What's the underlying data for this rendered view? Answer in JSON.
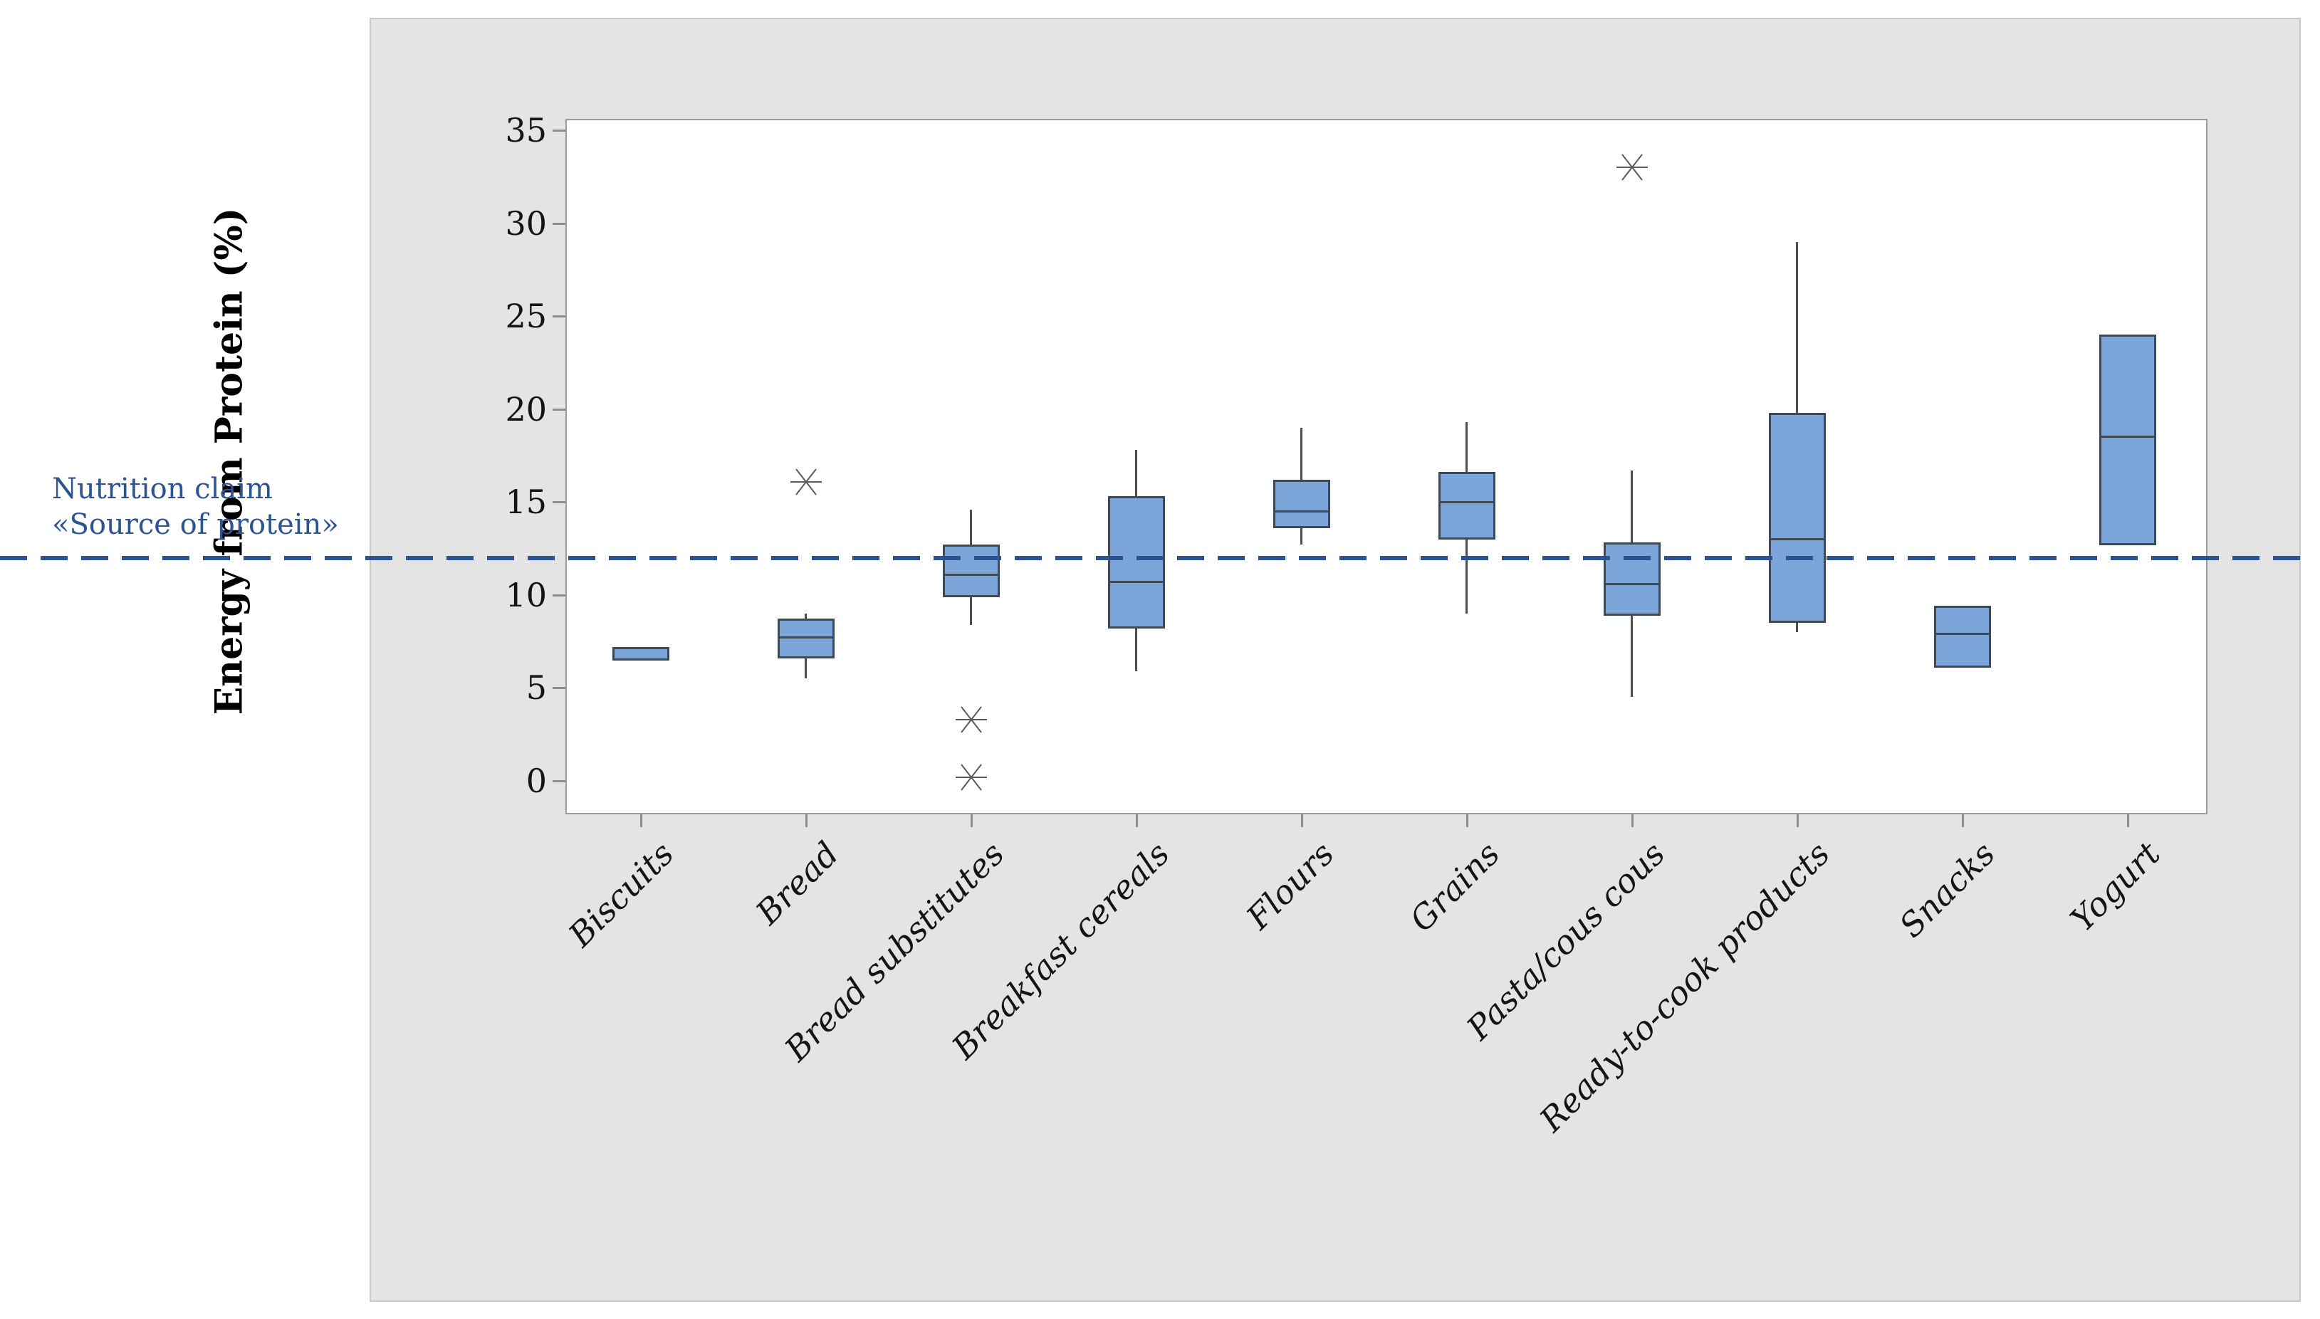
{
  "figure": {
    "page_background": "#ffffff",
    "panel_background": "#e4e4e4",
    "plot_background": "#ffffff",
    "axis_color": "#8e8e8e",
    "tick_label_color": "#141414"
  },
  "chart_data": {
    "type": "boxplot",
    "title": "",
    "xlabel": "",
    "ylabel": "Energy from Protein (%)",
    "ylim": [
      -2,
      38
    ],
    "yticks": [
      0,
      5,
      10,
      15,
      20,
      25,
      30,
      35
    ],
    "grid": false,
    "legend": null,
    "box_fill": "#7ca6da",
    "box_border": "#3e4a55",
    "whisker_color": "#4f4f4f",
    "outlier_color": "#5a5a5a",
    "refline": {
      "value": 12,
      "style": "dashed",
      "color": "#2b5391",
      "label_line1": "Nutrition claim",
      "label_line2": "«Source of protein»",
      "label_color": "#2d5492"
    },
    "categories": [
      "Biscuits",
      "Bread",
      "Bread substitutes",
      "Breakfast cereals",
      "Flours",
      "Grains",
      "Pasta/cous cous",
      "Ready-to-cook products",
      "Snacks",
      "Yogurt"
    ],
    "boxes": [
      {
        "label": "Biscuits",
        "q1": 6.6,
        "median": 6.8,
        "q3": 7.1,
        "whisker_low": null,
        "whisker_high": null,
        "outliers": []
      },
      {
        "label": "Bread",
        "q1": 6.7,
        "median": 7.7,
        "q3": 8.6,
        "whisker_low": 5.5,
        "whisker_high": 9.0,
        "outliers": [
          16.1
        ]
      },
      {
        "label": "Bread substitutes",
        "q1": 10.0,
        "median": 11.1,
        "q3": 12.6,
        "whisker_low": 8.4,
        "whisker_high": 14.6,
        "outliers": [
          3.3,
          0.2
        ]
      },
      {
        "label": "Breakfast cereals",
        "q1": 8.3,
        "median": 10.7,
        "q3": 15.2,
        "whisker_low": 5.9,
        "whisker_high": 17.8,
        "outliers": []
      },
      {
        "label": "Flours",
        "q1": 13.7,
        "median": 14.5,
        "q3": 16.1,
        "whisker_low": 12.7,
        "whisker_high": 19.0,
        "outliers": []
      },
      {
        "label": "Grains",
        "q1": 13.1,
        "median": 15.0,
        "q3": 16.5,
        "whisker_low": 9.0,
        "whisker_high": 19.3,
        "outliers": []
      },
      {
        "label": "Pasta/cous cous",
        "q1": 9.0,
        "median": 10.6,
        "q3": 12.7,
        "whisker_low": 4.5,
        "whisker_high": 16.7,
        "outliers": [
          33.0
        ]
      },
      {
        "label": "Ready-to-cook products",
        "q1": 8.6,
        "median": 13.0,
        "q3": 19.7,
        "whisker_low": 8.0,
        "whisker_high": 29.0,
        "outliers": []
      },
      {
        "label": "Snacks",
        "q1": 6.2,
        "median": 7.9,
        "q3": 9.3,
        "whisker_low": null,
        "whisker_high": null,
        "outliers": []
      },
      {
        "label": "Yogurt",
        "q1": 12.8,
        "median": 18.5,
        "q3": 23.9,
        "whisker_low": null,
        "whisker_high": null,
        "outliers": []
      }
    ]
  }
}
